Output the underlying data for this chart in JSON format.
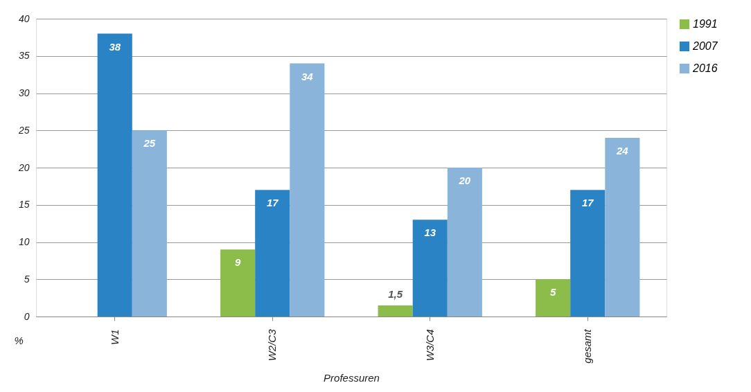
{
  "chart_data": {
    "type": "bar",
    "xlabel": "Professuren",
    "ylabel": "%",
    "categories": [
      "W1",
      "W2/C3",
      "W3/C4",
      "gesamt"
    ],
    "series": [
      {
        "name": "1991",
        "color": "#8cbd4b",
        "values": [
          null,
          9,
          1.5,
          5
        ],
        "value_labels": [
          null,
          "9",
          "1,5",
          "5"
        ]
      },
      {
        "name": "2007",
        "color": "#2a83c4",
        "values": [
          38,
          17,
          13,
          17
        ],
        "value_labels": [
          "38",
          "17",
          "13",
          "17"
        ]
      },
      {
        "name": "2016",
        "color": "#8ab4da",
        "values": [
          25,
          34,
          20,
          24
        ],
        "value_labels": [
          "25",
          "34",
          "20",
          "24"
        ]
      }
    ],
    "ylim": [
      0,
      40
    ],
    "yticks": [
      0,
      5,
      10,
      15,
      20,
      25,
      30,
      35,
      40
    ],
    "grid": "y",
    "legend": "right"
  }
}
